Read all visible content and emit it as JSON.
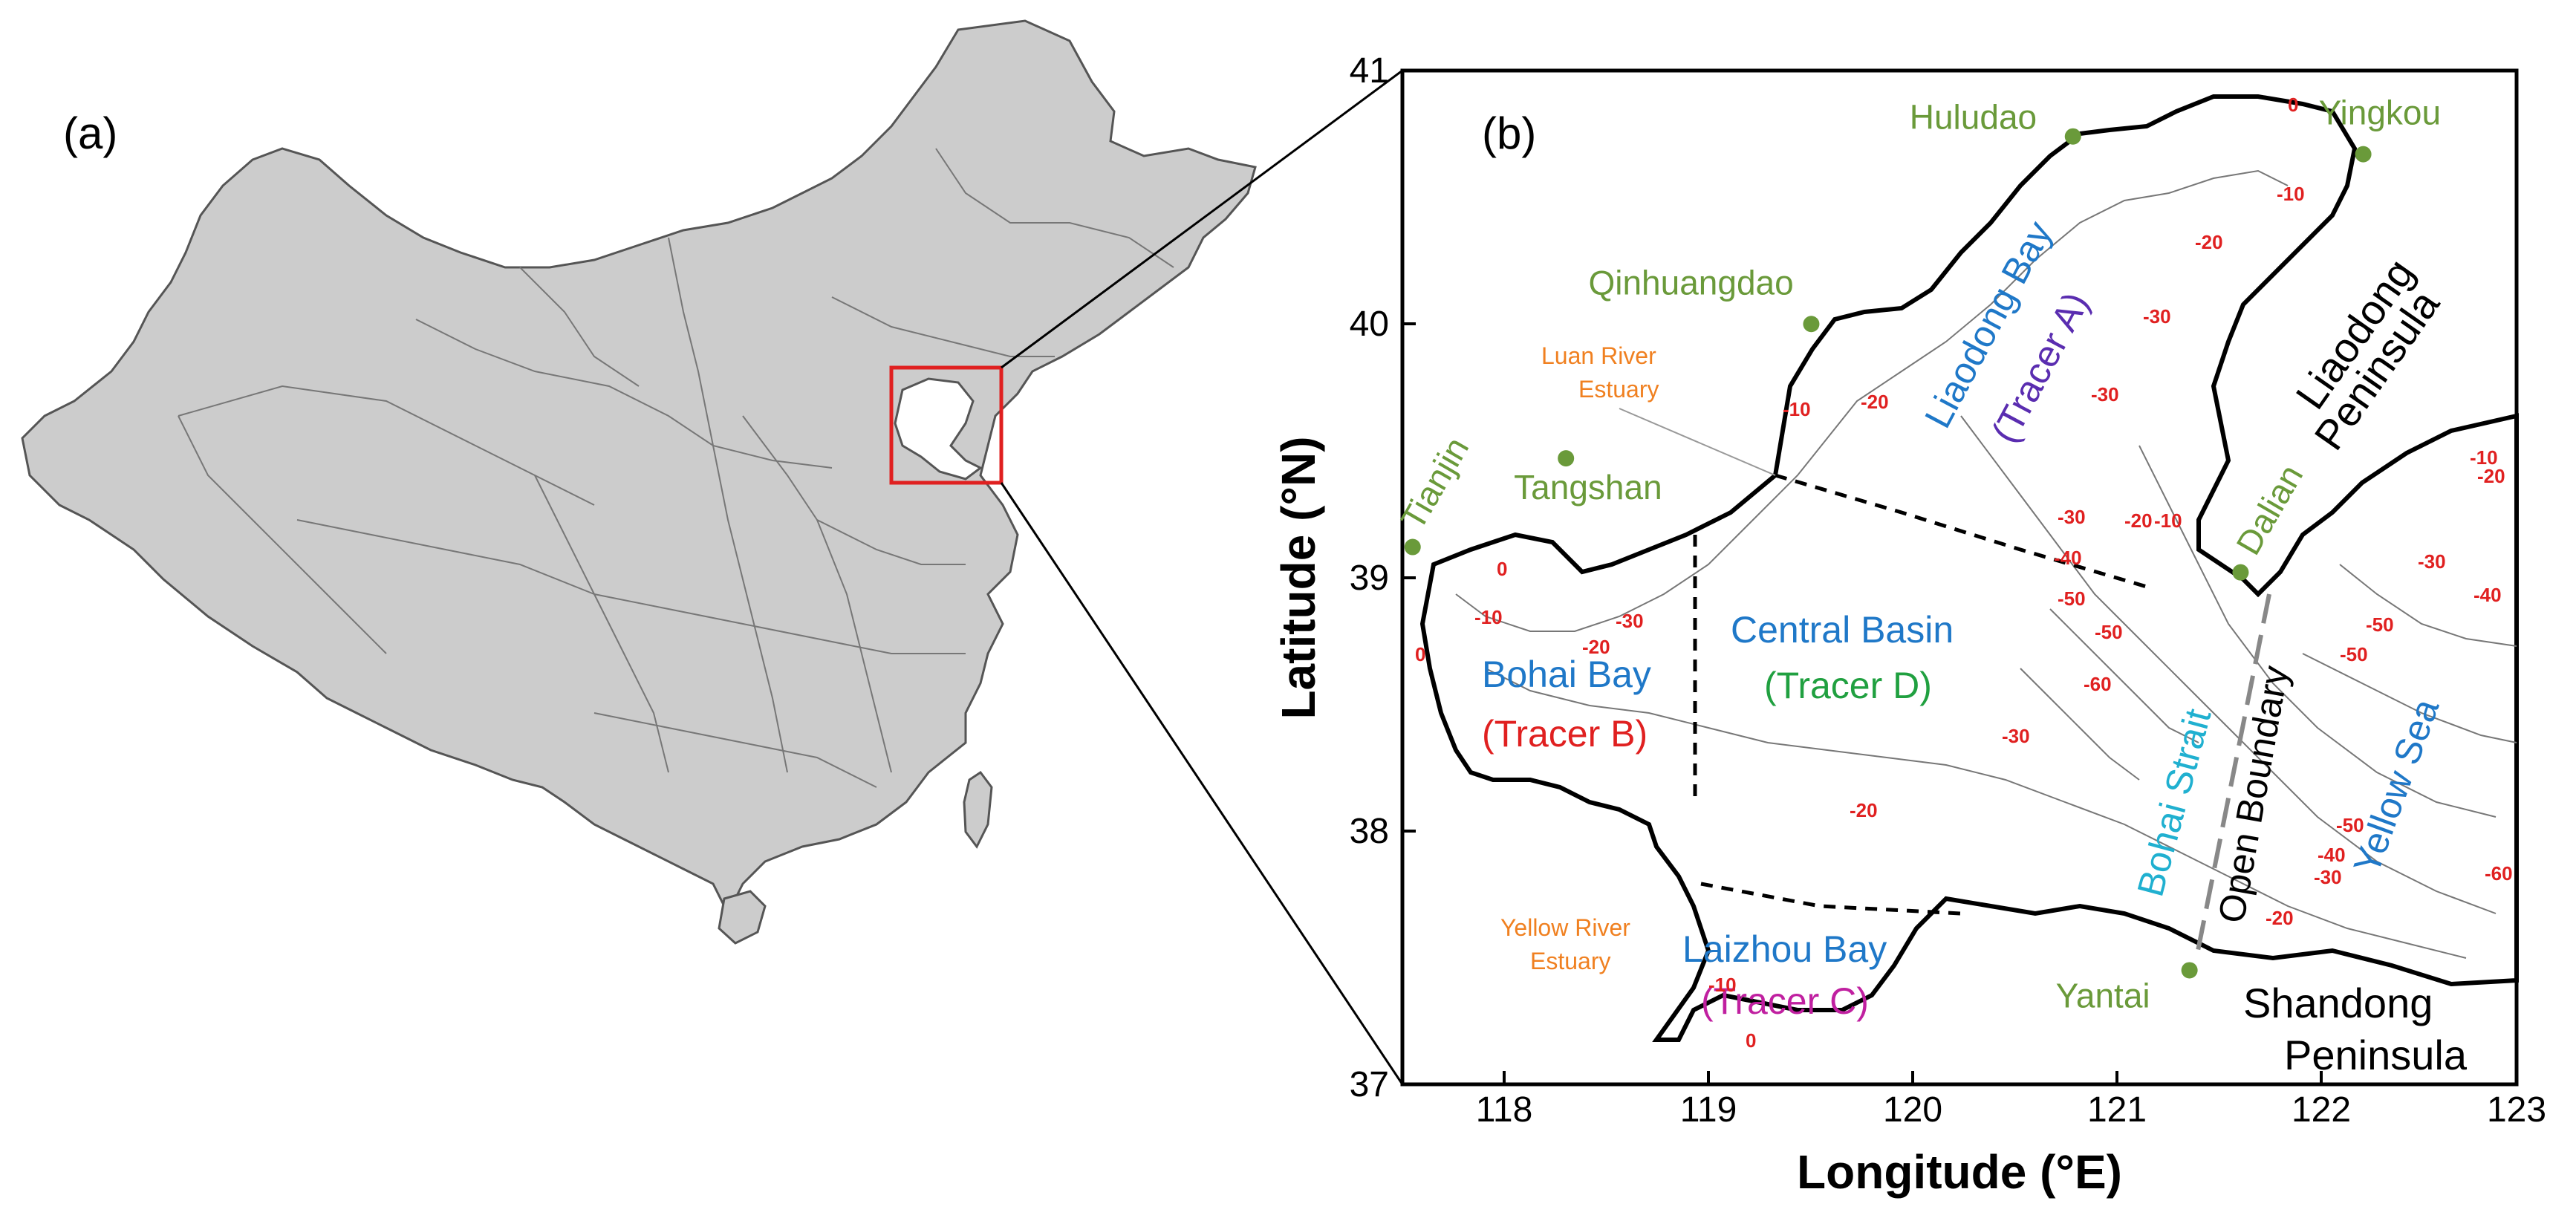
{
  "panels": {
    "a": "(a)",
    "b": "(b)"
  },
  "axes": {
    "xlabel": "Longitude (°E)",
    "ylabel": "Latitude (°N)",
    "x_ticks": [
      "118",
      "119",
      "120",
      "121",
      "122",
      "123"
    ],
    "y_ticks": [
      "37",
      "38",
      "39",
      "40",
      "41"
    ],
    "xlim": [
      117.55,
      123
    ],
    "ylim": [
      37,
      41
    ]
  },
  "cities": [
    {
      "name": "Huludao",
      "lon": 120.83,
      "lat": 40.74
    },
    {
      "name": "Yingkou",
      "lon": 122.25,
      "lat": 40.67
    },
    {
      "name": "Qinhuangdao",
      "lon": 119.55,
      "lat": 40.0
    },
    {
      "name": "Tangshan",
      "lon": 118.35,
      "lat": 39.47
    },
    {
      "name": "Tianjin",
      "lon": 117.6,
      "lat": 39.12
    },
    {
      "name": "Dalian",
      "lon": 121.65,
      "lat": 39.02
    },
    {
      "name": "Yantai",
      "lon": 121.4,
      "lat": 37.45
    }
  ],
  "regions": {
    "liaodong_bay": "Liaodong Bay",
    "tracer_a": "(Tracer A)",
    "bohai_bay": "Bohai Bay",
    "tracer_b": "(Tracer B)",
    "central_basin": "Central Basin",
    "tracer_d": "(Tracer D)",
    "laizhou_bay": "Laizhou Bay",
    "tracer_c": "(Tracer C)",
    "bohai_strait": "Bohai Strait",
    "open_boundary": "Open Boundary",
    "yellow_sea": "Yellow Sea",
    "liaodong_peninsula_1": "Liaodong",
    "liaodong_peninsula_2": "Peninsula",
    "shandong_peninsula_1": "Shandong",
    "shandong_peninsula_2": "Peninsula"
  },
  "estuaries": {
    "luan_1": "Luan River",
    "luan_2": "Estuary",
    "yellow_1": "Yellow River",
    "yellow_2": "Estuary"
  },
  "depth_labels": [
    "0",
    "-10",
    "-20",
    "-30",
    "-40",
    "-50",
    "-60"
  ],
  "colors": {
    "land_fill": "#cccccc",
    "city": "#6a9a3a",
    "region_blue": "#1f78c8",
    "tracer_a": "#5a2db0",
    "tracer_b": "#e02020",
    "tracer_c": "#c020a0",
    "tracer_d": "#20a040",
    "strait": "#20b0d0",
    "estuary": "#f08020",
    "depth": "#e02020"
  }
}
